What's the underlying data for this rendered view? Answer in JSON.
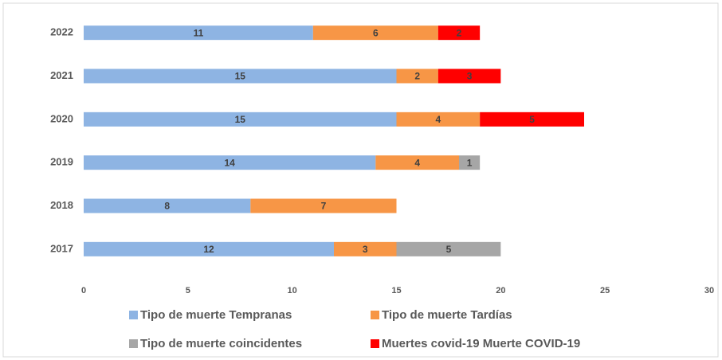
{
  "chart_data": {
    "type": "stacked_barh",
    "categories": [
      "2022",
      "2021",
      "2020",
      "2019",
      "2018",
      "2017"
    ],
    "series": [
      {
        "name": "Tipo de muerte Tempranas",
        "color": "#8eb4e3",
        "values": [
          11,
          15,
          15,
          14,
          8,
          12
        ]
      },
      {
        "name": "Tipo de muerte Tardías",
        "color": "#f79646",
        "values": [
          6,
          2,
          4,
          4,
          7,
          3
        ]
      },
      {
        "name": "Tipo de muerte  coincidentes",
        "color": "#a6a6a6",
        "values": [
          null,
          null,
          null,
          1,
          null,
          5
        ]
      },
      {
        "name": "Muertes covid-19 Muerte COVID-19",
        "color": "#ff0000",
        "values": [
          2,
          3,
          5,
          null,
          null,
          null
        ]
      }
    ],
    "xlim": [
      0,
      30
    ],
    "xticks": [
      0,
      5,
      10,
      15,
      20,
      25,
      30
    ],
    "legend": "bottom"
  }
}
